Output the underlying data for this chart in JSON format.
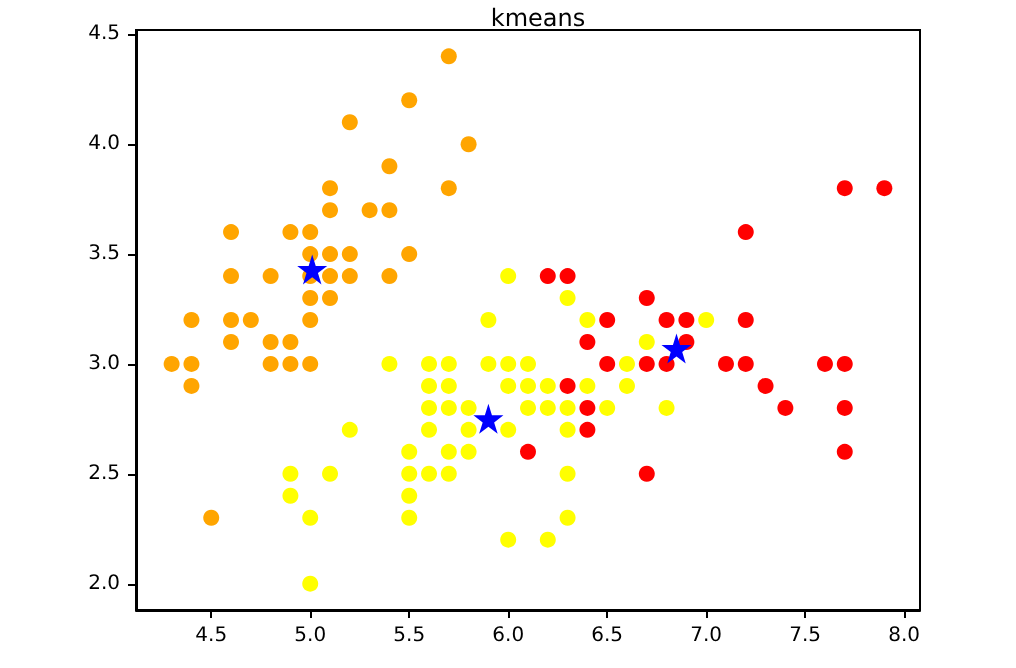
{
  "chart_data": {
    "type": "scatter",
    "title": "kmeans",
    "marker": "circle",
    "xlim": [
      4.12,
      8.08
    ],
    "ylim": [
      1.88,
      4.52
    ],
    "xticks": [
      4.5,
      {
        "value": 5,
        "label": "5.0"
      },
      5.5,
      {
        "value": 6,
        "label": "6.0"
      },
      6.5,
      {
        "value": 7,
        "label": "7.0"
      },
      7.5,
      {
        "value": 8,
        "label": "8.0"
      }
    ],
    "yticks": [
      {
        "value": 2,
        "label": "2.0"
      },
      2.5,
      {
        "value": 3,
        "label": "3.0"
      },
      3.5,
      {
        "value": 4,
        "label": "4.0"
      },
      4.5
    ],
    "series": [
      {
        "color": "#ffa500",
        "x": [
          4.3,
          4.4,
          4.4,
          4.4,
          4.5,
          4.6,
          4.6,
          4.6,
          4.6,
          4.7,
          4.8,
          4.8,
          4.8,
          4.9,
          4.9,
          4.9,
          5.0,
          5.0,
          5.0,
          5.0,
          5.0,
          5.0,
          5.1,
          5.1,
          5.1,
          5.1,
          5.1,
          5.2,
          5.2,
          5.2,
          5.3,
          5.4,
          5.4,
          5.4,
          5.5,
          5.5,
          5.7,
          5.7,
          5.8
        ],
        "values": [
          3.0,
          2.9,
          3.0,
          3.2,
          2.3,
          3.1,
          3.2,
          3.4,
          3.6,
          3.2,
          3.0,
          3.1,
          3.4,
          3.0,
          3.1,
          3.6,
          3.0,
          3.2,
          3.3,
          3.4,
          3.5,
          3.6,
          3.3,
          3.4,
          3.5,
          3.7,
          3.8,
          3.4,
          3.5,
          4.1,
          3.7,
          3.4,
          3.7,
          3.9,
          3.5,
          4.2,
          3.8,
          4.4,
          4.0
        ]
      },
      {
        "color": "#ffff00",
        "x": [
          7.0,
          6.4,
          5.5,
          6.5,
          5.7,
          6.3,
          4.9,
          6.6,
          5.2,
          5.0,
          5.9,
          6.0,
          6.1,
          5.6,
          6.7,
          5.6,
          5.8,
          6.2,
          5.6,
          5.9,
          6.1,
          6.3,
          6.4,
          6.6,
          6.8,
          6.0,
          5.7,
          5.5,
          6.0,
          5.4,
          6.0,
          6.3,
          5.5,
          5.5,
          6.1,
          5.8,
          5.0,
          5.6,
          5.7,
          5.7,
          6.2,
          5.1,
          4.9,
          5.7,
          5.8,
          5.6,
          6.3,
          6.2,
          6.3,
          6.0
        ],
        "values": [
          3.2,
          3.2,
          2.3,
          2.8,
          2.8,
          3.3,
          2.4,
          2.9,
          2.7,
          2.0,
          3.0,
          2.2,
          2.9,
          2.9,
          3.1,
          3.0,
          2.7,
          2.2,
          2.5,
          3.2,
          2.8,
          2.5,
          2.9,
          3.0,
          2.8,
          2.9,
          2.6,
          2.4,
          2.7,
          3.0,
          3.4,
          2.3,
          2.5,
          2.6,
          3.0,
          2.6,
          2.3,
          2.7,
          3.0,
          2.9,
          2.9,
          2.5,
          2.5,
          2.5,
          2.8,
          2.8,
          2.7,
          2.8,
          2.8,
          3.0
        ]
      },
      {
        "color": "#ff0000",
        "x": [
          6.2,
          6.3,
          6.7,
          6.5,
          6.8,
          6.4,
          6.5,
          6.7,
          6.8,
          6.3,
          6.4,
          6.4,
          6.1,
          6.7,
          7.7,
          7.9,
          7.2,
          6.9,
          7.2,
          6.9,
          7.1,
          7.2,
          7.6,
          7.7,
          7.3,
          7.4,
          7.7,
          7.7
        ],
        "values": [
          3.4,
          3.4,
          3.3,
          3.2,
          3.2,
          3.1,
          3.0,
          3.0,
          3.0,
          2.9,
          2.8,
          2.7,
          2.6,
          2.5,
          3.8,
          3.8,
          3.6,
          3.2,
          3.2,
          3.1,
          3.0,
          3.0,
          3.0,
          3.0,
          2.9,
          2.8,
          2.8,
          2.6
        ]
      },
      {
        "color": "#0000ff",
        "marker": "star",
        "x": [
          5.01,
          5.9,
          6.85
        ],
        "values": [
          3.43,
          2.75,
          3.07
        ]
      }
    ]
  }
}
